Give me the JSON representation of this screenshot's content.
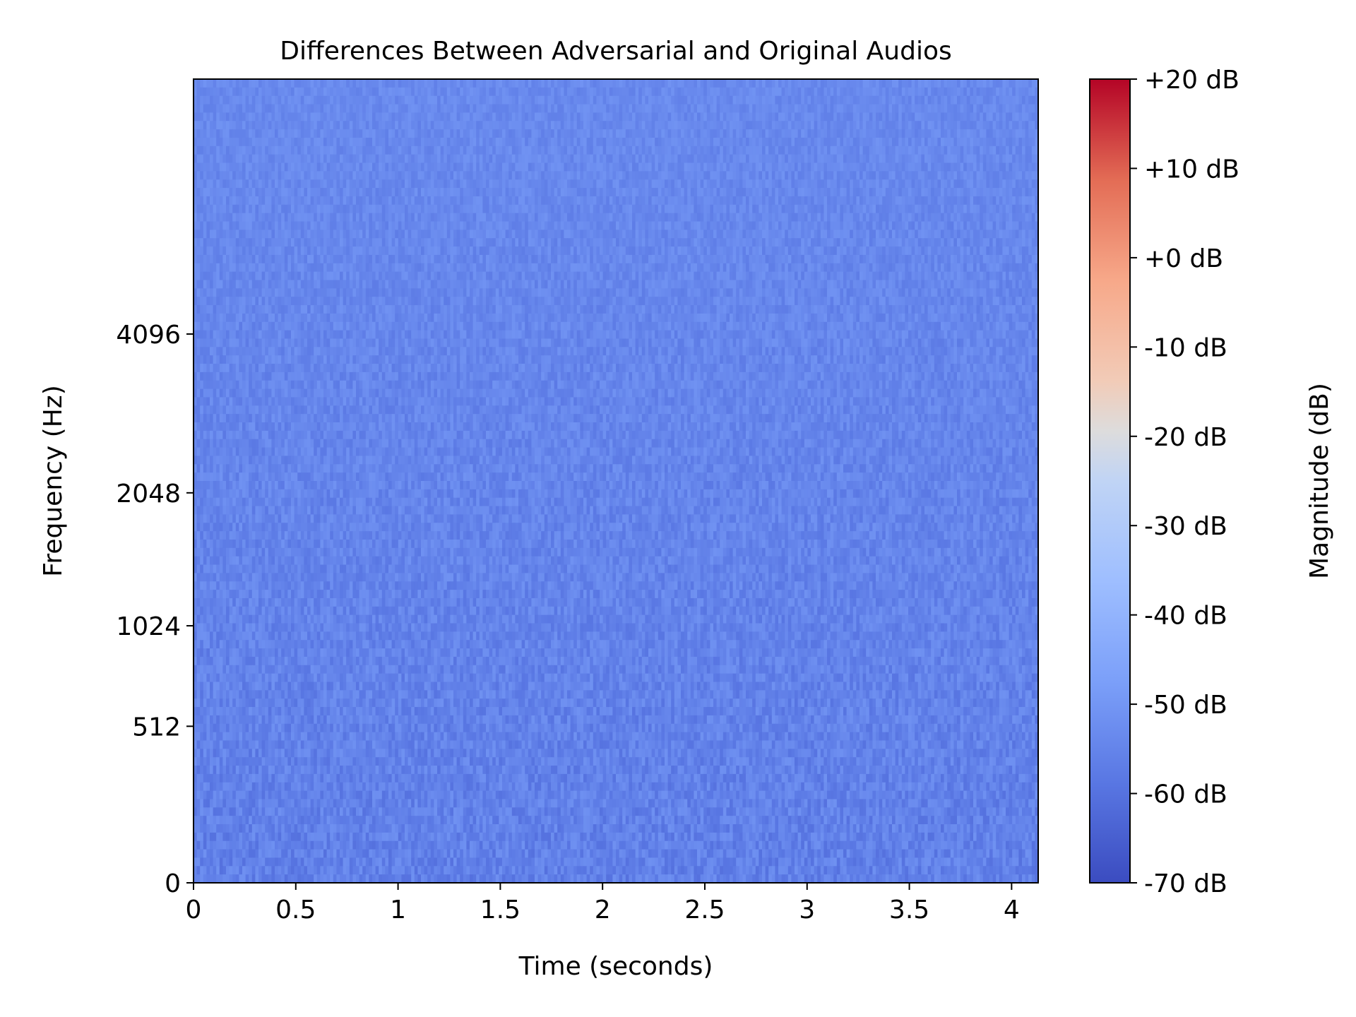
{
  "chart_data": {
    "type": "heatmap",
    "title": "Differences Between Adversarial and Original Audios",
    "xlabel": "Time (seconds)",
    "ylabel": "Frequency (Hz)",
    "colorbar_label": "Magnitude (dB)",
    "colormap": "coolwarm",
    "xlim": [
      0,
      4.13
    ],
    "x_ticks": [
      0,
      0.5,
      1,
      1.5,
      2,
      2.5,
      3,
      3.5,
      4
    ],
    "x_tick_labels": [
      "0",
      "0.5",
      "1",
      "1.5",
      "2",
      "2.5",
      "3",
      "3.5",
      "4"
    ],
    "y_scale": "log2 (Mel)",
    "y_ticks": [
      0,
      512,
      1024,
      2048,
      4096
    ],
    "y_tick_labels": [
      "0",
      "512",
      "1024",
      "2048",
      "4096"
    ],
    "clim": [
      -70,
      20
    ],
    "colorbar_ticks": [
      20,
      10,
      0,
      -10,
      -20,
      -30,
      -40,
      -50,
      -60,
      -70
    ],
    "colorbar_tick_labels": [
      "+20 dB",
      "+10 dB",
      "+0 dB",
      "-10 dB",
      "-20 dB",
      "-30 dB",
      "-40 dB",
      "-50 dB",
      "-60 dB",
      "-70 dB"
    ],
    "value_range_observed": [
      -65,
      -45
    ],
    "typical_value": -55,
    "colors": {
      "cmap_low": "#3b4cc0",
      "cmap_mid": "#dddddd",
      "cmap_high": "#b40426",
      "axis": "#000000",
      "background": "#ffffff"
    }
  }
}
